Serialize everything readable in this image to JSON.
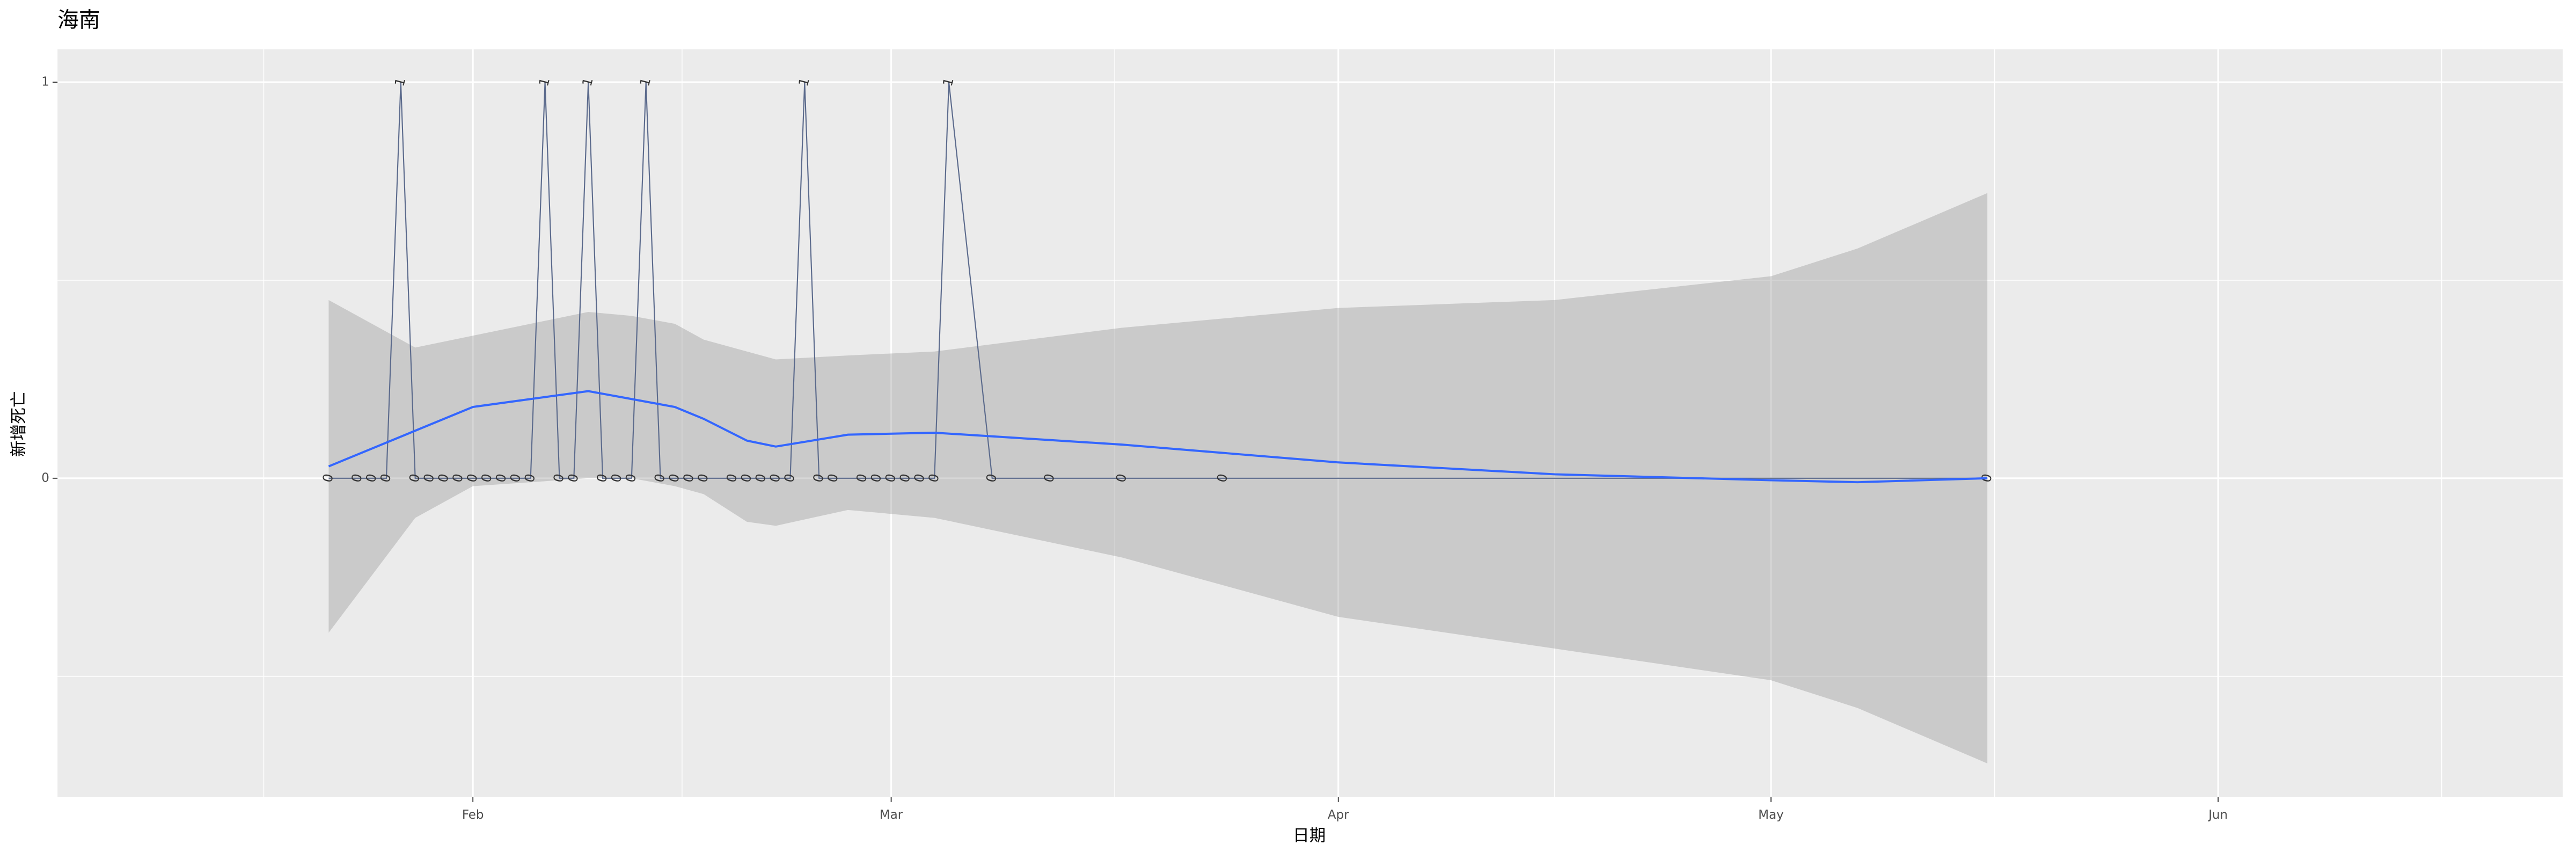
{
  "chart_data": {
    "type": "line",
    "title": "海南",
    "x_label": "日期",
    "y_label": "新增死亡",
    "x": [
      22,
      24,
      25,
      26,
      27,
      28,
      29,
      30,
      31,
      32,
      33,
      34,
      35,
      36,
      37,
      38,
      39,
      40,
      41,
      42,
      43,
      44,
      45,
      46,
      47,
      48,
      50,
      51,
      52,
      53,
      54,
      55,
      56,
      57,
      59,
      60,
      61,
      62,
      63,
      64,
      65,
      68,
      72,
      77,
      84,
      137
    ],
    "values": [
      0,
      0,
      0,
      0,
      1,
      0,
      0,
      0,
      0,
      0,
      0,
      0,
      0,
      0,
      1,
      0,
      0,
      1,
      0,
      0,
      0,
      1,
      0,
      0,
      0,
      0,
      0,
      0,
      0,
      0,
      0,
      1,
      0,
      0,
      0,
      0,
      0,
      0,
      0,
      0,
      1,
      0,
      0,
      0,
      0,
      0
    ],
    "color": "#5b6a8c",
    "smooth": {
      "color": "#3366ff",
      "fill": "#999999",
      "x": [
        22,
        28,
        32,
        40,
        43,
        46,
        48,
        51,
        53,
        58,
        64,
        77,
        92,
        107,
        122,
        128,
        137
      ],
      "y": [
        0.03,
        0.12,
        0.18,
        0.22,
        0.2,
        0.18,
        0.15,
        0.095,
        0.08,
        0.11,
        0.115,
        0.085,
        0.04,
        0.01,
        -0.005,
        -0.01,
        0.0
      ],
      "ymin": [
        -0.39,
        -0.1,
        -0.02,
        0.0,
        0.0,
        -0.02,
        -0.04,
        -0.11,
        -0.12,
        -0.08,
        -0.1,
        -0.2,
        -0.35,
        -0.43,
        -0.51,
        -0.58,
        -0.72
      ],
      "ymax": [
        0.45,
        0.33,
        0.36,
        0.42,
        0.41,
        0.39,
        0.35,
        0.32,
        0.3,
        0.31,
        0.32,
        0.38,
        0.43,
        0.45,
        0.51,
        0.58,
        0.72
      ]
    },
    "xlim": [
      3.2,
      176.9
    ],
    "xticks": [
      {
        "value": 32,
        "label": "Feb"
      },
      {
        "value": 61,
        "label": "Mar"
      },
      {
        "value": 92,
        "label": "Apr"
      },
      {
        "value": 122,
        "label": "May"
      },
      {
        "value": 153,
        "label": "Jun"
      }
    ],
    "ylim": [
      -0.805,
      1.083
    ],
    "yticks": [
      0,
      1
    ],
    "grid": true
  }
}
